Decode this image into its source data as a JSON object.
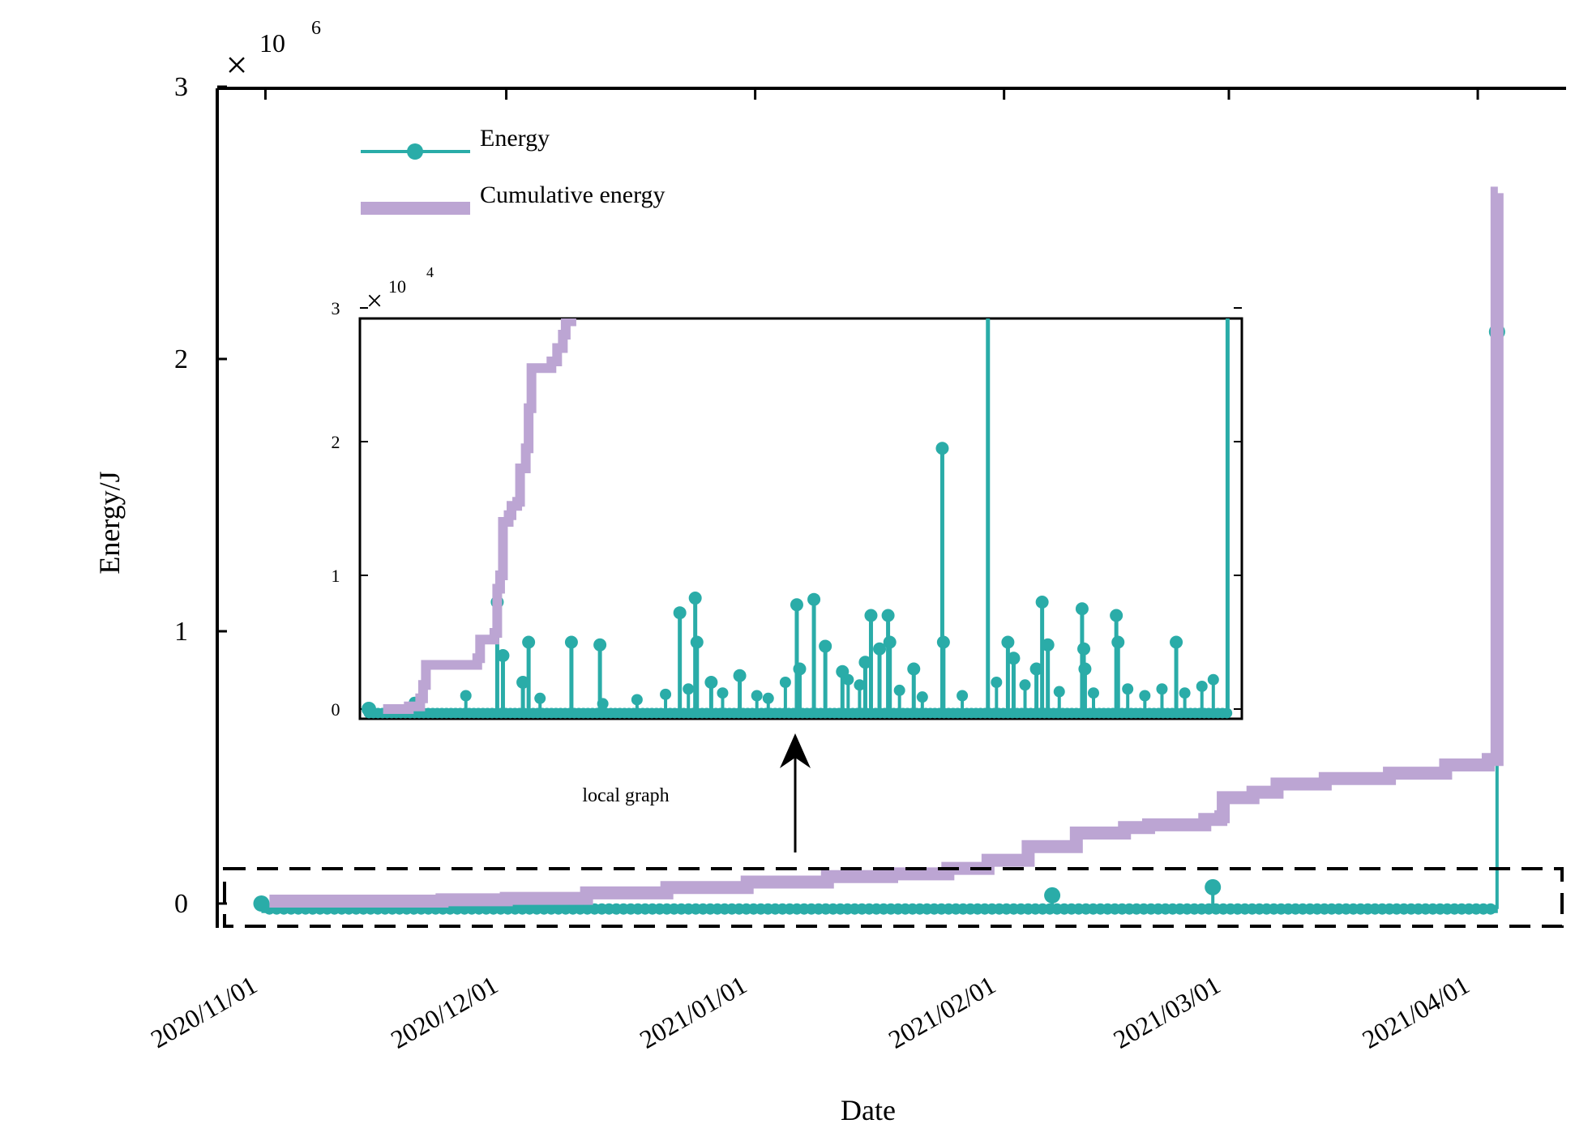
{
  "chart_data": {
    "type": "line",
    "main": {
      "ylabel": "Energy/J",
      "xlabel": "Date",
      "y_multiplier": {
        "symbol": "×",
        "base": "10",
        "exponent": "6"
      },
      "ylim": [
        -0.05,
        3
      ],
      "yticks": [
        0,
        1,
        2,
        3
      ],
      "xlim_days": [
        -6,
        162
      ],
      "xticks": [
        {
          "label": "2020/11/01",
          "day": 0
        },
        {
          "label": "2020/12/01",
          "day": 30
        },
        {
          "label": "2021/01/01",
          "day": 61
        },
        {
          "label": "2021/02/01",
          "day": 92
        },
        {
          "label": "2021/03/01",
          "day": 120
        },
        {
          "label": "2021/04/01",
          "day": 151
        }
      ],
      "legend": {
        "location": "top-left",
        "entries": [
          {
            "name": "Energy",
            "color": "#2aaca8",
            "style": "line-marker"
          },
          {
            "name": "Cumulative energy",
            "color": "#bca5d3",
            "style": "thick-line"
          }
        ]
      },
      "energy_notable_points": [
        {
          "day": -0.5,
          "value": 0.0
        },
        {
          "day": 118.0,
          "value": 0.06
        },
        {
          "day": 98.0,
          "value": 0.03
        },
        {
          "day": 153.4,
          "value": 2.1
        }
      ],
      "cumulative_energy": {
        "days": [
          0.5,
          8,
          22,
          30,
          40,
          50,
          60,
          70,
          78,
          85,
          90,
          95,
          101,
          107,
          110,
          117,
          119,
          119.3,
          123,
          126,
          132,
          140,
          147,
          152.3,
          153.2,
          153.4,
          153.5
        ],
        "values": [
          0.0,
          0.0,
          0.005,
          0.01,
          0.03,
          0.05,
          0.07,
          0.09,
          0.1,
          0.12,
          0.15,
          0.2,
          0.25,
          0.27,
          0.28,
          0.3,
          0.31,
          0.38,
          0.4,
          0.43,
          0.45,
          0.47,
          0.5,
          0.52,
          0.52,
          2.6,
          2.6
        ]
      }
    },
    "inset": {
      "title": "local graph",
      "y_multiplier": {
        "symbol": "×",
        "base": "10",
        "exponent": "4"
      },
      "ylim": [
        -0.05,
        3
      ],
      "yticks": [
        0,
        1,
        2,
        3
      ],
      "xlim_days": [
        -1,
        153
      ],
      "energy_spikes": [
        {
          "day": 22.5,
          "value": 0.8
        },
        {
          "day": 23.5,
          "value": 0.4
        },
        {
          "day": 27,
          "value": 0.2
        },
        {
          "day": 28,
          "value": 0.5
        },
        {
          "day": 35.5,
          "value": 0.5
        },
        {
          "day": 40.5,
          "value": 0.48
        },
        {
          "day": 54.5,
          "value": 0.72
        },
        {
          "day": 57.2,
          "value": 0.83
        },
        {
          "day": 57.5,
          "value": 0.5
        },
        {
          "day": 60,
          "value": 0.2
        },
        {
          "day": 65,
          "value": 0.25
        },
        {
          "day": 75,
          "value": 0.78
        },
        {
          "day": 75.5,
          "value": 0.3
        },
        {
          "day": 78,
          "value": 0.82
        },
        {
          "day": 80,
          "value": 0.47
        },
        {
          "day": 83,
          "value": 0.28
        },
        {
          "day": 87,
          "value": 0.35
        },
        {
          "day": 88,
          "value": 0.7
        },
        {
          "day": 89.5,
          "value": 0.45
        },
        {
          "day": 91,
          "value": 0.7
        },
        {
          "day": 91.3,
          "value": 0.5
        },
        {
          "day": 95.5,
          "value": 0.3
        },
        {
          "day": 100.5,
          "value": 1.95
        },
        {
          "day": 100.7,
          "value": 0.5
        },
        {
          "day": 108.5,
          "value": 3.0
        },
        {
          "day": 112,
          "value": 0.5
        },
        {
          "day": 113,
          "value": 0.38
        },
        {
          "day": 117,
          "value": 0.3
        },
        {
          "day": 118,
          "value": 0.8
        },
        {
          "day": 119,
          "value": 0.48
        },
        {
          "day": 125,
          "value": 0.75
        },
        {
          "day": 125.3,
          "value": 0.45
        },
        {
          "day": 125.5,
          "value": 0.3
        },
        {
          "day": 131,
          "value": 0.7
        },
        {
          "day": 131.3,
          "value": 0.5
        },
        {
          "day": 141.5,
          "value": 0.5
        },
        {
          "day": 150.5,
          "value": 3.0
        }
      ],
      "cumulative_energy": {
        "days": [
          2.5,
          7,
          9,
          9.5,
          10,
          19,
          19.5,
          22,
          22.5,
          23,
          23.5,
          24.5,
          25,
          26,
          26.5,
          27.5,
          28,
          28.5,
          32,
          33,
          34,
          34.5,
          35.5
        ],
        "values": [
          0.0,
          0.02,
          0.08,
          0.18,
          0.33,
          0.38,
          0.52,
          0.57,
          0.9,
          1.0,
          1.4,
          1.45,
          1.52,
          1.55,
          1.8,
          1.95,
          2.25,
          2.55,
          2.6,
          2.7,
          2.8,
          2.9,
          3.0
        ]
      }
    },
    "annotation": {
      "text": "local graph",
      "arrow": "up"
    }
  }
}
